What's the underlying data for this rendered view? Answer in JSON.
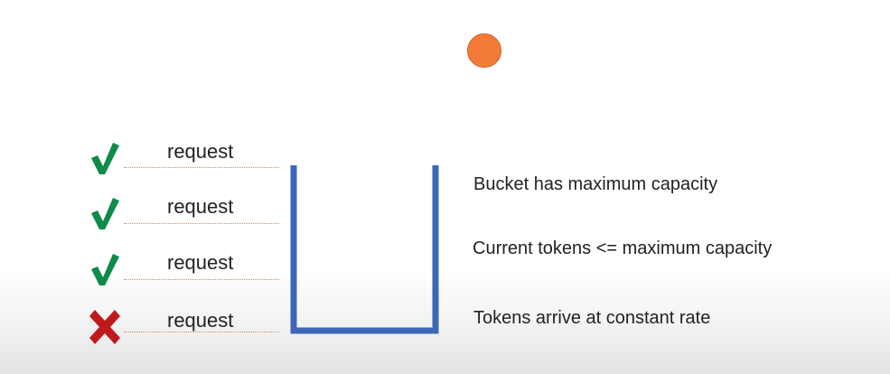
{
  "requests": [
    {
      "label": "request",
      "status": "accepted",
      "icon": "checkmark-icon",
      "color": "#0e8a4a"
    },
    {
      "label": "request",
      "status": "accepted",
      "icon": "checkmark-icon",
      "color": "#0e8a4a"
    },
    {
      "label": "request",
      "status": "accepted",
      "icon": "checkmark-icon",
      "color": "#0e8a4a"
    },
    {
      "label": "request",
      "status": "rejected",
      "icon": "cross-icon",
      "color": "#c0191b"
    }
  ],
  "token": {
    "icon": "token-circle",
    "color": "#f47b37"
  },
  "bucket": {
    "color": "#3d66b8"
  },
  "descriptions": [
    "Bucket has maximum capacity",
    "Current tokens <= maximum capacity",
    "Tokens arrive at constant rate"
  ]
}
